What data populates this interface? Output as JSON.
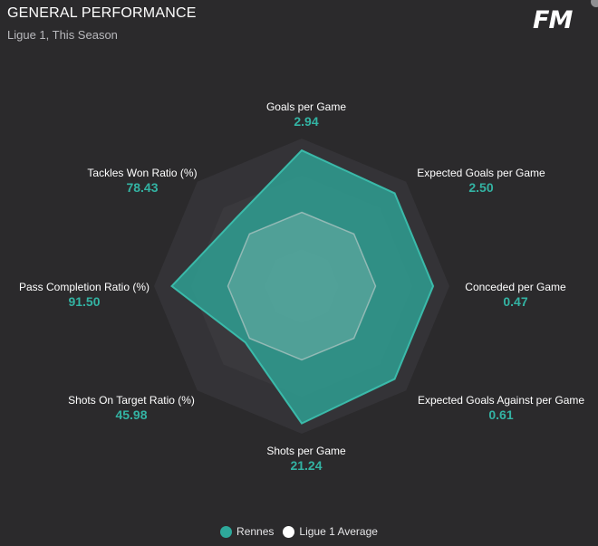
{
  "header": {
    "title": "GENERAL PERFORMANCE",
    "subtitle": "Ligue 1, This Season",
    "logo": "FM"
  },
  "colors": {
    "background": "#2b2a2c",
    "primary": "#2ea89a",
    "value_text": "#33b3a3",
    "secondary": "#ffffff",
    "grid": "#3a393d"
  },
  "chart_data": {
    "type": "radar",
    "axes": [
      {
        "label": "Goals per Game",
        "value": "2.94"
      },
      {
        "label": "Expected Goals per Game",
        "value": "2.50"
      },
      {
        "label": "Conceded per Game",
        "value": "0.47"
      },
      {
        "label": "Expected Goals Against per Game",
        "value": "0.61"
      },
      {
        "label": "Shots per Game",
        "value": "21.24"
      },
      {
        "label": "Shots On Target Ratio (%)",
        "value": "45.98"
      },
      {
        "label": "Pass Completion Ratio (%)",
        "value": "91.50"
      },
      {
        "label": "Tackles Won Ratio (%)",
        "value": "78.43"
      }
    ],
    "series": [
      {
        "name": "Rennes",
        "color": "#2ea89a",
        "relative_scores": [
          0.92,
          0.89,
          0.89,
          0.89,
          0.93,
          0.54,
          0.88,
          0.64
        ]
      },
      {
        "name": "Ligue 1 Average",
        "color": "#ffffff",
        "relative_scores": [
          0.5,
          0.5,
          0.5,
          0.5,
          0.5,
          0.5,
          0.5,
          0.5
        ]
      }
    ],
    "grid_levels": 4,
    "legend_position": "bottom"
  }
}
